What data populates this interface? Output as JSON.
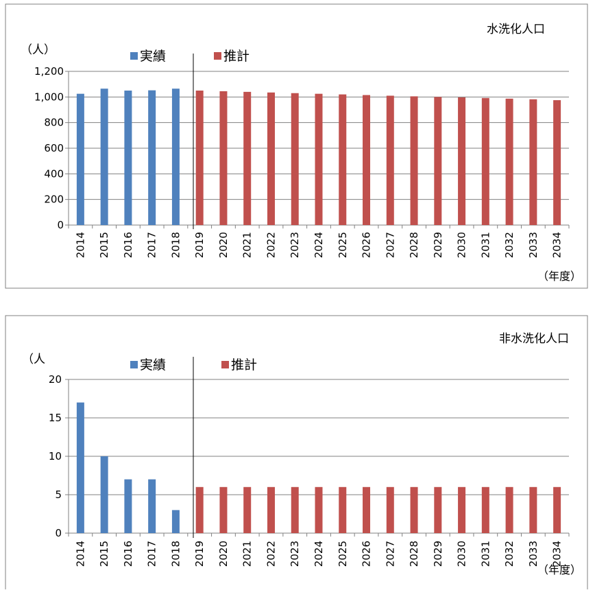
{
  "chart_data": [
    {
      "type": "bar",
      "title": "水洗化人口",
      "ylabel": "（人）",
      "xlabel": "（年度）",
      "ylim": [
        0,
        1200
      ],
      "yticks": [
        0,
        200,
        400,
        600,
        800,
        1000,
        1200
      ],
      "ytick_labels": [
        "0",
        "200",
        "400",
        "600",
        "800",
        "1,000",
        "1,200"
      ],
      "grid": true,
      "legend_position": "top",
      "categories": [
        "2014",
        "2015",
        "2016",
        "2017",
        "2018",
        "2019",
        "2020",
        "2021",
        "2022",
        "2023",
        "2024",
        "2025",
        "2026",
        "2027",
        "2028",
        "2029",
        "2030",
        "2031",
        "2032",
        "2033",
        "2034"
      ],
      "series": [
        {
          "name": "実績",
          "color": "#4f81bd",
          "values": [
            1025,
            1065,
            1050,
            1052,
            1065,
            null,
            null,
            null,
            null,
            null,
            null,
            null,
            null,
            null,
            null,
            null,
            null,
            null,
            null,
            null,
            null
          ]
        },
        {
          "name": "推計",
          "color": "#c0504d",
          "values": [
            null,
            null,
            null,
            null,
            null,
            1050,
            1045,
            1040,
            1035,
            1030,
            1025,
            1020,
            1015,
            1010,
            1005,
            1000,
            997,
            992,
            987,
            982,
            975
          ]
        }
      ]
    },
    {
      "type": "bar",
      "title": "非水洗化人口",
      "ylabel": "（人",
      "xlabel": "（年度）",
      "ylim": [
        0,
        20
      ],
      "yticks": [
        0,
        5,
        10,
        15,
        20
      ],
      "ytick_labels": [
        "0",
        "5",
        "10",
        "15",
        "20"
      ],
      "grid": true,
      "legend_position": "top",
      "categories": [
        "2014",
        "2015",
        "2016",
        "2017",
        "2018",
        "2019",
        "2020",
        "2021",
        "2022",
        "2023",
        "2024",
        "2025",
        "2026",
        "2027",
        "2028",
        "2029",
        "2030",
        "2031",
        "2032",
        "2033",
        "2034"
      ],
      "series": [
        {
          "name": "実績",
          "color": "#4f81bd",
          "values": [
            17,
            10,
            7,
            7,
            3,
            null,
            null,
            null,
            null,
            null,
            null,
            null,
            null,
            null,
            null,
            null,
            null,
            null,
            null,
            null,
            null
          ]
        },
        {
          "name": "推計",
          "color": "#c0504d",
          "values": [
            null,
            null,
            null,
            null,
            null,
            6,
            6,
            6,
            6,
            6,
            6,
            6,
            6,
            6,
            6,
            6,
            6,
            6,
            6,
            6,
            6
          ]
        }
      ]
    }
  ]
}
